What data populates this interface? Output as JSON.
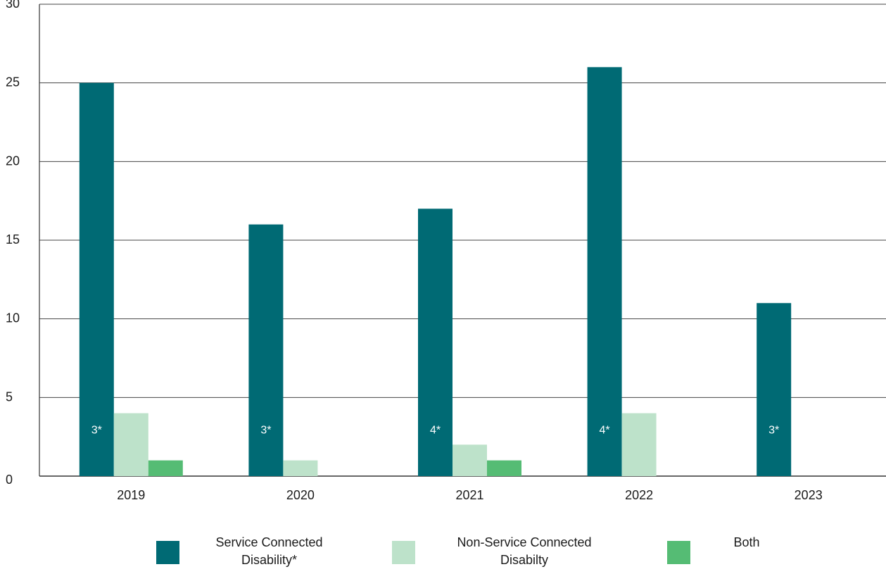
{
  "chart_data": {
    "type": "bar",
    "categories": [
      "2019",
      "2020",
      "2021",
      "2022",
      "2023"
    ],
    "series": [
      {
        "name": "Service Connected Disability*",
        "color": "#006A74",
        "values": [
          25,
          16,
          17,
          26,
          11
        ]
      },
      {
        "name": "Non-Service Connected Disabilty",
        "color": "#BDE2CA",
        "values": [
          4,
          1,
          2,
          4,
          0
        ]
      },
      {
        "name": "Both",
        "color": "#55BC74",
        "values": [
          1,
          0,
          1,
          0,
          0
        ]
      }
    ],
    "annotations": [
      "3*",
      "3*",
      "4*",
      "4*",
      "3*"
    ],
    "y_ticks": [
      "0",
      "5",
      "10",
      "15",
      "20",
      "25",
      "30"
    ],
    "ylim": [
      0,
      30
    ],
    "grid": true,
    "legend": "bottom"
  },
  "legend": {
    "item0": "Service Connected\nDisability*",
    "item1": "Non-Service Connected\nDisabilty",
    "item2": "Both"
  }
}
